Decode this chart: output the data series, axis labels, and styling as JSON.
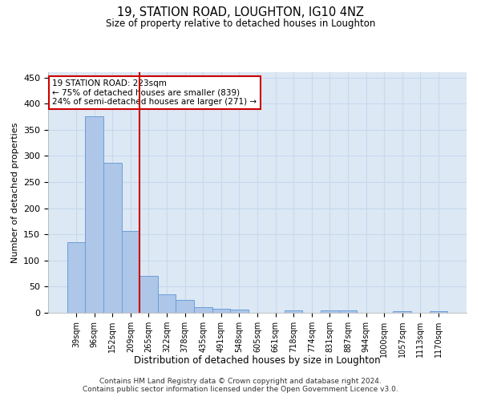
{
  "title": "19, STATION ROAD, LOUGHTON, IG10 4NZ",
  "subtitle": "Size of property relative to detached houses in Loughton",
  "xlabel": "Distribution of detached houses by size in Loughton",
  "ylabel": "Number of detached properties",
  "footer_line1": "Contains HM Land Registry data © Crown copyright and database right 2024.",
  "footer_line2": "Contains public sector information licensed under the Open Government Licence v3.0.",
  "bar_labels": [
    "39sqm",
    "96sqm",
    "152sqm",
    "209sqm",
    "265sqm",
    "322sqm",
    "378sqm",
    "435sqm",
    "491sqm",
    "548sqm",
    "605sqm",
    "661sqm",
    "718sqm",
    "774sqm",
    "831sqm",
    "887sqm",
    "944sqm",
    "1000sqm",
    "1057sqm",
    "1113sqm",
    "1170sqm"
  ],
  "bar_values": [
    135,
    375,
    287,
    157,
    70,
    36,
    25,
    10,
    7,
    6,
    0,
    0,
    4,
    0,
    4,
    4,
    0,
    0,
    3,
    0,
    3
  ],
  "bar_color": "#aec6e8",
  "bar_edge_color": "#6a9fd8",
  "grid_color": "#c8d8ee",
  "background_color": "#dce8f4",
  "annotation_box_color": "#ffffff",
  "annotation_border_color": "#cc0000",
  "annotation_line1": "19 STATION ROAD: 223sqm",
  "annotation_line2": "← 75% of detached houses are smaller (839)",
  "annotation_line3": "24% of semi-detached houses are larger (271) →",
  "red_line_x": 3.5,
  "ylim": [
    0,
    460
  ],
  "yticks": [
    0,
    50,
    100,
    150,
    200,
    250,
    300,
    350,
    400,
    450
  ]
}
